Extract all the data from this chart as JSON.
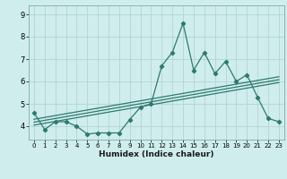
{
  "x": [
    0,
    1,
    2,
    3,
    4,
    5,
    6,
    7,
    8,
    9,
    10,
    11,
    12,
    13,
    14,
    15,
    16,
    17,
    18,
    19,
    20,
    21,
    22,
    23
  ],
  "y_main": [
    4.6,
    3.85,
    4.2,
    4.2,
    4.0,
    3.65,
    3.7,
    3.7,
    3.7,
    4.3,
    4.85,
    5.0,
    6.7,
    7.3,
    8.6,
    6.5,
    7.3,
    6.35,
    6.9,
    6.0,
    6.3,
    5.3,
    4.35,
    4.2
  ],
  "trend_lines": [
    {
      "x": [
        0,
        23
      ],
      "y": [
        4.05,
        5.95
      ]
    },
    {
      "x": [
        0,
        23
      ],
      "y": [
        4.18,
        6.08
      ]
    },
    {
      "x": [
        0,
        23
      ],
      "y": [
        4.31,
        6.21
      ]
    }
  ],
  "line_color": "#2d7a6e",
  "bg_color": "#d0eded",
  "grid_color": "#b0d4d4",
  "xlabel": "Humidex (Indice chaleur)",
  "xlim": [
    -0.5,
    23.5
  ],
  "ylim": [
    3.4,
    9.4
  ],
  "yticks": [
    4,
    5,
    6,
    7,
    8,
    9
  ],
  "xticks": [
    0,
    1,
    2,
    3,
    4,
    5,
    6,
    7,
    8,
    9,
    10,
    11,
    12,
    13,
    14,
    15,
    16,
    17,
    18,
    19,
    20,
    21,
    22,
    23
  ]
}
